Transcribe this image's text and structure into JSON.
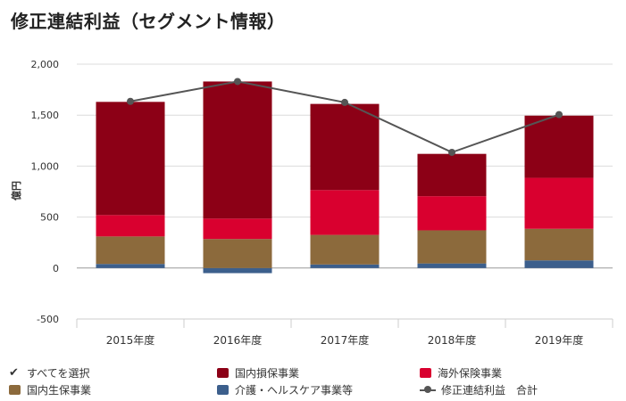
{
  "title": "修正連結利益（セグメント情報）",
  "chart_data": {
    "type": "bar",
    "stacked": true,
    "categories": [
      "2015年度",
      "2016年度",
      "2017年度",
      "2018年度",
      "2019年度"
    ],
    "ylabel": "億円",
    "ylim": [
      -500,
      2000
    ],
    "yticks": [
      -500,
      0,
      500,
      1000,
      1500,
      2000
    ],
    "ytick_labels": [
      "-500",
      "0",
      "500",
      "1,000",
      "1,500",
      "2,000"
    ],
    "grid": true,
    "series": [
      {
        "name": "介護・ヘルスケア事業等",
        "color": "#3c5f8c",
        "values": [
          40,
          -50,
          35,
          45,
          75
        ]
      },
      {
        "name": "国内生保事業",
        "color": "#8c6a3c",
        "values": [
          270,
          285,
          290,
          325,
          310
        ]
      },
      {
        "name": "海外保険事業",
        "color": "#d9002f",
        "values": [
          210,
          200,
          440,
          335,
          500
        ]
      },
      {
        "name": "国内損保事業",
        "color": "#8c0016",
        "values": [
          1110,
          1345,
          845,
          415,
          610
        ]
      }
    ],
    "line_series": {
      "name": "修正連結利益　合計",
      "color": "#555555",
      "values": [
        1635,
        1830,
        1625,
        1135,
        1505
      ]
    }
  },
  "legend": {
    "select_all": "すべてを選択",
    "items": [
      {
        "label": "国内損保事業",
        "color": "#8c0016"
      },
      {
        "label": "海外保険事業",
        "color": "#d9002f"
      },
      {
        "label": "国内生保事業",
        "color": "#8c6a3c"
      },
      {
        "label": "介護・ヘルスケア事業等",
        "color": "#3c5f8c"
      },
      {
        "label": "修正連結利益　合計",
        "color": "#555555"
      }
    ]
  }
}
